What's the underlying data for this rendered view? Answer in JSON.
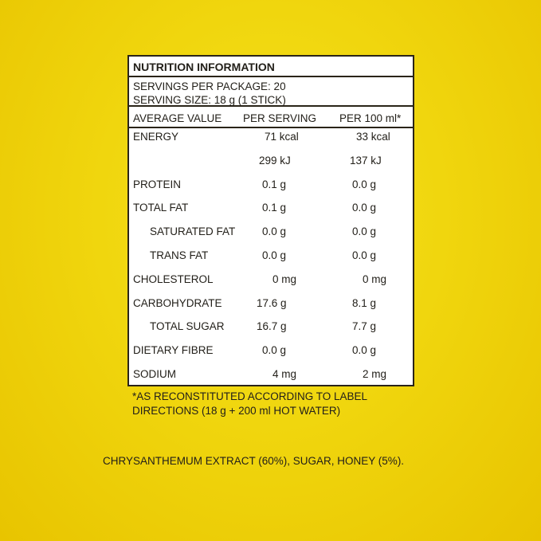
{
  "panel": {
    "title": "NUTRITION INFORMATION",
    "servings_per_package": "SERVINGS PER PACKAGE: 20",
    "serving_size": "SERVING SIZE: 18 g (1 STICK)",
    "headers": [
      "AVERAGE VALUE",
      "PER SERVING",
      "PER 100 ml*"
    ],
    "rows": [
      {
        "label": "ENERGY",
        "per_serving": "71 kcal",
        "per_100ml": "33 kcal"
      },
      {
        "label": "",
        "per_serving": "299 kJ",
        "per_100ml": "137 kJ"
      },
      {
        "label": "PROTEIN",
        "per_serving": "0.1 g",
        "per_100ml": "0.0 g"
      },
      {
        "label": "TOTAL FAT",
        "per_serving": "0.1 g",
        "per_100ml": "0.0 g"
      },
      {
        "label": "SATURATED FAT",
        "per_serving": "0.0 g",
        "per_100ml": "0.0 g",
        "indent": true
      },
      {
        "label": "TRANS FAT",
        "per_serving": "0.0 g",
        "per_100ml": "0.0 g",
        "indent": true
      },
      {
        "label": "CHOLESTEROL",
        "per_serving": "0 mg",
        "per_100ml": "0 mg"
      },
      {
        "label": "CARBOHYDRATE",
        "per_serving": "17.6 g",
        "per_100ml": "8.1 g"
      },
      {
        "label": "TOTAL SUGAR",
        "per_serving": "16.7 g",
        "per_100ml": "7.7 g",
        "indent": true
      },
      {
        "label": "DIETARY FIBRE",
        "per_serving": "0.0 g",
        "per_100ml": "0.0 g"
      },
      {
        "label": "SODIUM",
        "per_serving": "4 mg",
        "per_100ml": "2 mg"
      }
    ]
  },
  "footnote": {
    "line1": "*AS RECONSTITUTED ACCORDING TO LABEL",
    "line2": "DIRECTIONS (18 g + 200 ml HOT WATER)"
  },
  "ingredients": "CHRYSANTHEMUM EXTRACT (60%), SUGAR, HONEY (5%).",
  "colors": {
    "background": "#f0d60e",
    "text": "#23201a",
    "panel": "#ffffff"
  }
}
